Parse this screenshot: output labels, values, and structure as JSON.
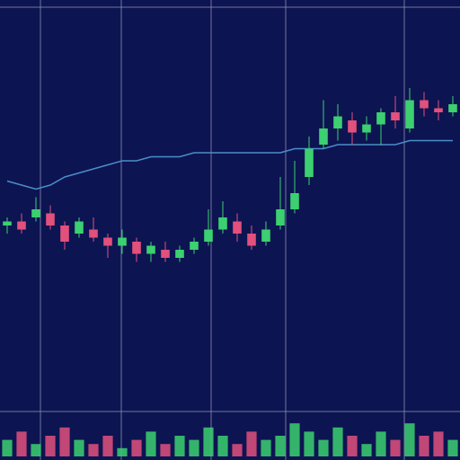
{
  "chart_data": {
    "type": "candlestick",
    "categories": [
      null,
      null,
      null,
      null,
      null,
      null,
      null,
      null,
      null,
      null,
      null,
      null,
      null,
      null,
      null,
      null,
      null,
      null,
      null,
      null,
      null,
      null,
      null,
      null,
      null,
      null,
      null,
      null,
      null,
      null,
      null,
      null
    ],
    "open": [
      46,
      47,
      48,
      49,
      46,
      44,
      45,
      43,
      41,
      42,
      39,
      40,
      38,
      40,
      42,
      45,
      47,
      44,
      42,
      46,
      50,
      58,
      66,
      70,
      72,
      69,
      71,
      74,
      70,
      77,
      75,
      74
    ],
    "close": [
      47,
      45,
      50,
      46,
      42,
      47,
      43,
      41,
      43,
      39,
      41,
      38,
      40,
      42,
      45,
      48,
      44,
      41,
      45,
      50,
      54,
      65,
      70,
      73,
      69,
      71,
      74,
      72,
      77,
      75,
      74,
      76
    ],
    "high": [
      48,
      49,
      53,
      51,
      47,
      48,
      48,
      44,
      45,
      43,
      42,
      42,
      41,
      43,
      50,
      52,
      49,
      46,
      47,
      58,
      62,
      68,
      77,
      76,
      74,
      73,
      75,
      78,
      80,
      79,
      77,
      78
    ],
    "low": [
      44,
      44,
      47,
      45,
      40,
      43,
      42,
      38,
      39,
      37,
      37,
      37,
      37,
      39,
      41,
      44,
      42,
      40,
      41,
      45,
      49,
      56,
      65,
      67,
      66,
      67,
      66,
      70,
      69,
      73,
      72,
      73
    ],
    "volume": [
      4,
      6,
      3,
      5,
      7,
      4,
      3,
      5,
      2,
      4,
      6,
      3,
      5,
      4,
      7,
      5,
      3,
      6,
      4,
      5,
      8,
      6,
      4,
      7,
      5,
      3,
      6,
      4,
      8,
      5,
      6,
      4
    ],
    "ylim": [
      0,
      100
    ],
    "vlim": [
      0,
      10
    ],
    "ma": {
      "color": "#4a8ec8",
      "values": [
        57,
        56,
        55,
        56,
        58,
        59,
        60,
        61,
        62,
        62,
        63,
        63,
        63,
        64,
        64,
        64,
        64,
        64,
        64,
        64,
        65,
        65,
        65,
        66,
        66,
        66,
        66,
        66,
        67,
        67,
        67,
        67
      ]
    },
    "up_color": "#3cd070",
    "down_color": "#e2507c",
    "background": "#0d1452"
  }
}
